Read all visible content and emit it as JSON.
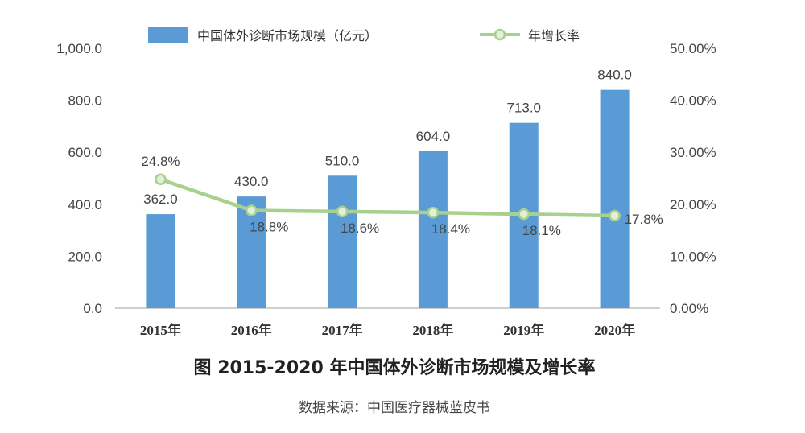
{
  "colors": {
    "bar": "#5b9bd5",
    "line": "#a9d18e",
    "marker_fill": "#e2efd9"
  },
  "chart_data": {
    "type": "bar",
    "categories": [
      "2015年",
      "2016年",
      "2017年",
      "2018年",
      "2019年",
      "2020年"
    ],
    "series": [
      {
        "name": "中国体外诊断市场规模（亿元）",
        "type": "bar",
        "axis": "left",
        "values": [
          362.0,
          430.0,
          510.0,
          604.0,
          713.0,
          840.0
        ],
        "labels": [
          "362.0",
          "430.0",
          "510.0",
          "604.0",
          "713.0",
          "840.0"
        ]
      },
      {
        "name": "年增长率",
        "type": "line",
        "axis": "right",
        "values": [
          24.8,
          18.8,
          18.6,
          18.4,
          18.1,
          17.8
        ],
        "labels": [
          "24.8%",
          "18.8%",
          "18.6%",
          "18.4%",
          "18.1%",
          "17.8%"
        ]
      }
    ],
    "y_left": {
      "lim": [
        0,
        1000
      ],
      "ticks": [
        "0.0",
        "200.0",
        "400.0",
        "600.0",
        "800.0",
        "1,000.0"
      ]
    },
    "y_right": {
      "lim": [
        0,
        50
      ],
      "ticks": [
        "0.00%",
        "10.00%",
        "20.00%",
        "30.00%",
        "40.00%",
        "50.00%"
      ]
    },
    "grid": false,
    "legend": "top-center",
    "title": "图 2015-2020 年中国体外诊断市场规模及增长率",
    "source": "数据来源：中国医疗器械蓝皮书"
  }
}
